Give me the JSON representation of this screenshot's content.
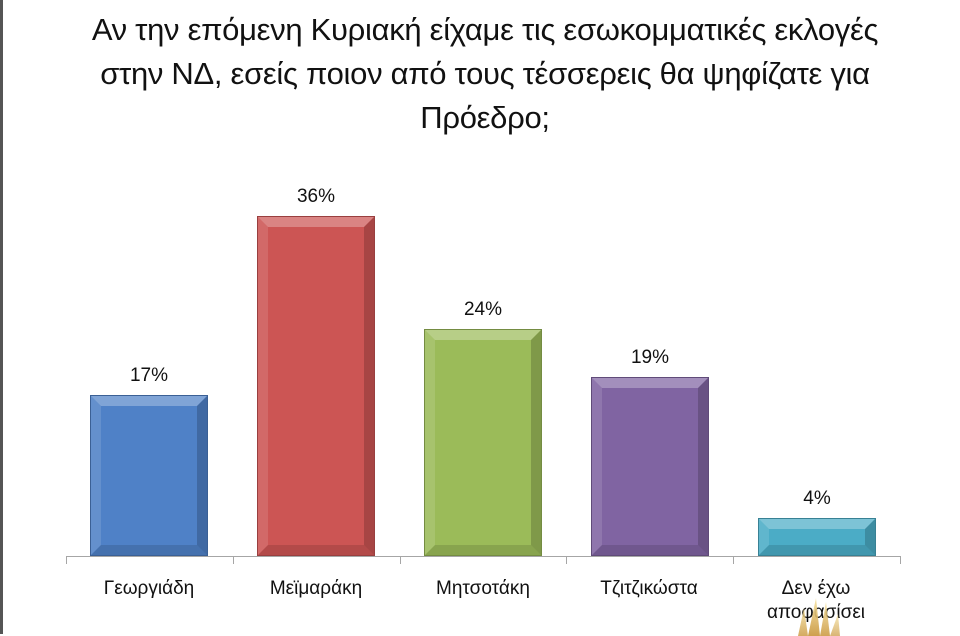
{
  "chart_data": {
    "type": "bar",
    "title": "Αν την επόμενη Κυριακή είχαμε τις εσωκομματικές εκλογές στην ΝΔ, εσείς ποιον από τους τέσσερεις θα ψηφίζατε για Πρόεδρο;",
    "categories": [
      "Γεωργιάδη",
      "Μεϊμαράκη",
      "Μητσοτάκη",
      "Τζιτζικώστα",
      "Δεν έχω αποφασίσει"
    ],
    "values": [
      17,
      36,
      24,
      19,
      4
    ],
    "value_labels": [
      "17%",
      "36%",
      "24%",
      "19%",
      "4%"
    ],
    "colors": [
      "#4f81c7",
      "#cc5554",
      "#9bbb59",
      "#8064a2",
      "#4bacc6"
    ],
    "xlabel": "",
    "ylabel": "",
    "ylim": [
      0,
      36
    ],
    "grid": false,
    "legend": "none"
  },
  "title_lines": [
    "Αν την επόμενη Κυριακή είχαμε τις εσωκομματικές εκλογές",
    "στην ΝΔ, εσείς ποιον από τους τέσσερεις θα ψηφίζατε για",
    "Πρόεδρο;"
  ],
  "category_lines": [
    [
      "Γεωργιάδη"
    ],
    [
      "Μεϊμαράκη"
    ],
    [
      "Μητσοτάκη"
    ],
    [
      "Τζιτζικώστα"
    ],
    [
      "Δεν έχω",
      "αποφασίσει"
    ]
  ],
  "decoration": "gold-crown-icon"
}
